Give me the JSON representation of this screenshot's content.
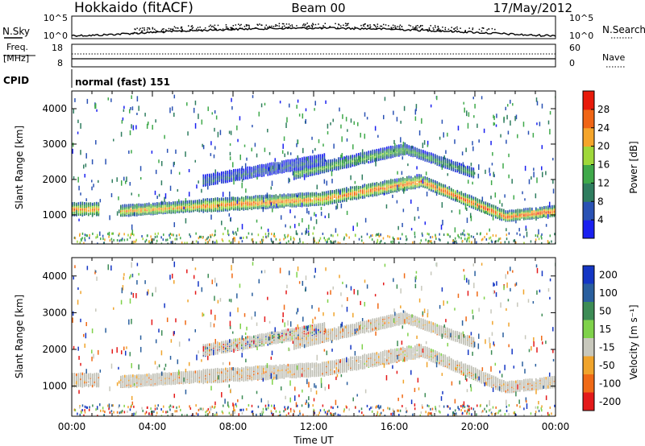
{
  "header": {
    "station": "Hokkaido (fitACF)",
    "beam": "Beam 00",
    "date": "17/May/2012"
  },
  "noise_panel": {
    "left_label": "N.Sky",
    "right_label": "N.Search",
    "left_ticks": [
      "10^5",
      "10^0"
    ],
    "right_ticks": [
      "10^5",
      "10^0"
    ]
  },
  "freq_panel": {
    "left_label_1": "Freq.",
    "left_label_2": "[MHz]",
    "right_label": "Nave",
    "left_ticks": [
      "18",
      "8"
    ],
    "right_ticks": [
      "60",
      "0"
    ]
  },
  "cpid": {
    "label": "CPID",
    "value": "normal (fast) 151"
  },
  "chart_data": [
    {
      "type": "heatmap",
      "quantity": "Power",
      "ylabel": "Slant Range [km]",
      "xlabel": "Time UT",
      "x_ticks": [
        "00:00",
        "04:00",
        "08:00",
        "12:00",
        "16:00",
        "20:00",
        "00:00"
      ],
      "y_ticks": [
        1000,
        2000,
        3000,
        4000
      ],
      "ylim": [
        180,
        4500
      ],
      "xlim_hours": [
        0,
        24
      ],
      "colorbar": {
        "label": "Power [dB]",
        "ticks": [
          4,
          8,
          12,
          16,
          20,
          24,
          28
        ],
        "range": [
          0,
          32
        ]
      },
      "bands": [
        {
          "t0": 0.0,
          "t1": 1.4,
          "r0": 1200,
          "r1": 1200,
          "w": 350,
          "peak_db": 26
        },
        {
          "t0": 2.4,
          "t1": 6.5,
          "r0": 1150,
          "r1": 1300,
          "w": 300,
          "peak_db": 24
        },
        {
          "t0": 6.5,
          "t1": 12.5,
          "r0": 1300,
          "r1": 1500,
          "w": 350,
          "peak_db": 26
        },
        {
          "t0": 12.5,
          "t1": 17.3,
          "r0": 1500,
          "r1": 2000,
          "w": 350,
          "peak_db": 26
        },
        {
          "t0": 17.3,
          "t1": 21.5,
          "r0": 2000,
          "r1": 1000,
          "w": 300,
          "peak_db": 28
        },
        {
          "t0": 21.5,
          "t1": 24.0,
          "r0": 1000,
          "r1": 1150,
          "w": 280,
          "peak_db": 28
        },
        {
          "t0": 11.0,
          "t1": 16.5,
          "r0": 2200,
          "r1": 2900,
          "w": 300,
          "peak_db": 16
        },
        {
          "t0": 16.5,
          "t1": 20.0,
          "r0": 2900,
          "r1": 2200,
          "w": 250,
          "peak_db": 14
        },
        {
          "t0": 6.5,
          "t1": 12.5,
          "r0": 2000,
          "r1": 2600,
          "w": 300,
          "peak_db": 8
        }
      ]
    },
    {
      "type": "heatmap",
      "quantity": "Velocity",
      "ylabel": "Slant Range [km]",
      "xlabel": "Time UT",
      "x_ticks": [
        "00:00",
        "04:00",
        "08:00",
        "12:00",
        "16:00",
        "20:00",
        "00:00"
      ],
      "y_ticks": [
        1000,
        2000,
        3000,
        4000
      ],
      "ylim": [
        180,
        4500
      ],
      "xlim_hours": [
        0,
        24
      ],
      "colorbar": {
        "label": "Velocity [m s⁻¹]",
        "ticks": [
          200,
          100,
          50,
          15,
          -15,
          -50,
          -100,
          -200
        ]
      },
      "note": "ground scatter (grey) dominates; blue/orange speckle at far range"
    }
  ],
  "colors": {
    "power_scale": [
      "#1a20f0",
      "#2a52b4",
      "#2f7d5f",
      "#3fa94a",
      "#9fd83a",
      "#f5a52b",
      "#f06515",
      "#e81a0a"
    ],
    "velocity_scale": [
      "#1436c4",
      "#2a5f9e",
      "#3d8c55",
      "#7fd24a",
      "#c8c8bc",
      "#f0a42c",
      "#f06a16",
      "#e41a1a"
    ],
    "ground_scatter": "#c0c0b6"
  }
}
